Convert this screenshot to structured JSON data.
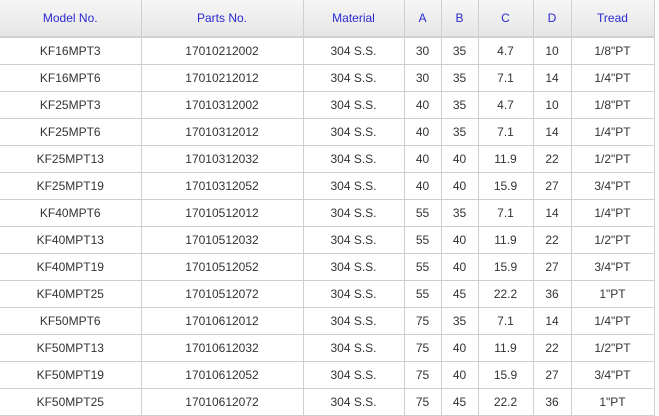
{
  "headers": [
    "Model No.",
    "Parts No.",
    "Material",
    "A",
    "B",
    "C",
    "D",
    "Tread"
  ],
  "rows": [
    [
      "KF16MPT3",
      "17010212002",
      "304 S.S.",
      "30",
      "35",
      "4.7",
      "10",
      "1/8\"PT"
    ],
    [
      "KF16MPT6",
      "17010212012",
      "304 S.S.",
      "30",
      "35",
      "7.1",
      "14",
      "1/4\"PT"
    ],
    [
      "KF25MPT3",
      "17010312002",
      "304 S.S.",
      "40",
      "35",
      "4.7",
      "10",
      "1/8\"PT"
    ],
    [
      "KF25MPT6",
      "17010312012",
      "304 S.S.",
      "40",
      "35",
      "7.1",
      "14",
      "1/4\"PT"
    ],
    [
      "KF25MPT13",
      "17010312032",
      "304 S.S.",
      "40",
      "40",
      "11.9",
      "22",
      "1/2\"PT"
    ],
    [
      "KF25MPT19",
      "17010312052",
      "304 S.S.",
      "40",
      "40",
      "15.9",
      "27",
      "3/4\"PT"
    ],
    [
      "KF40MPT6",
      "17010512012",
      "304 S.S.",
      "55",
      "35",
      "7.1",
      "14",
      "1/4\"PT"
    ],
    [
      "KF40MPT13",
      "17010512032",
      "304 S.S.",
      "55",
      "40",
      "11.9",
      "22",
      "1/2\"PT"
    ],
    [
      "KF40MPT19",
      "17010512052",
      "304 S.S.",
      "55",
      "40",
      "15.9",
      "27",
      "3/4\"PT"
    ],
    [
      "KF40MPT25",
      "17010512072",
      "304 S.S.",
      "55",
      "45",
      "22.2",
      "36",
      "1\"PT"
    ],
    [
      "KF50MPT6",
      "17010612012",
      "304 S.S.",
      "75",
      "35",
      "7.1",
      "14",
      "1/4\"PT"
    ],
    [
      "KF50MPT13",
      "17010612032",
      "304 S.S.",
      "75",
      "40",
      "11.9",
      "22",
      "1/2\"PT"
    ],
    [
      "KF50MPT19",
      "17010612052",
      "304 S.S.",
      "75",
      "40",
      "15.9",
      "27",
      "3/4\"PT"
    ],
    [
      "KF50MPT25",
      "17010612072",
      "304 S.S.",
      "75",
      "45",
      "22.2",
      "36",
      "1\"PT"
    ]
  ]
}
